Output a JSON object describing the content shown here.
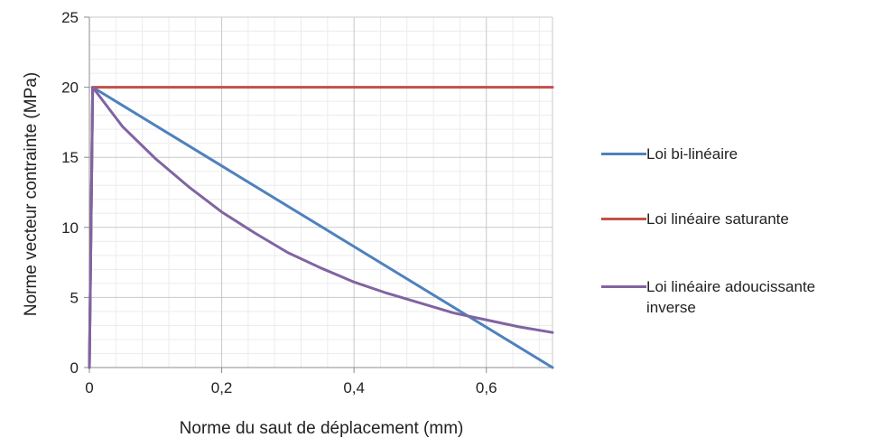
{
  "chart_data": {
    "type": "line",
    "xlabel": "Norme du saut de déplacement (mm)",
    "ylabel": "Norme vecteur contrainte (MPa)",
    "xlim": [
      0,
      0.7
    ],
    "ylim": [
      0,
      25
    ],
    "x_ticks": [
      0,
      0.2,
      0.4,
      0.6
    ],
    "x_tick_labels": [
      "0",
      "0,2",
      "0,4",
      "0,6"
    ],
    "y_ticks": [
      0,
      5,
      10,
      15,
      20,
      25
    ],
    "y_tick_labels": [
      "0",
      "5",
      "10",
      "15",
      "20",
      "25"
    ],
    "grid": true,
    "legend_position": "right",
    "series": [
      {
        "name": "Loi bi-linéaire",
        "color": "#4f81bd",
        "x": [
          0,
          0.005,
          0.7
        ],
        "y": [
          0,
          20,
          0
        ]
      },
      {
        "name": "Loi linéaire saturante",
        "color": "#c0504d",
        "x": [
          0,
          0.005,
          0.7
        ],
        "y": [
          0,
          20,
          20
        ]
      },
      {
        "name": "Loi linéaire adoucissante inverse",
        "color": "#8064a2",
        "x": [
          0,
          0.005,
          0.05,
          0.1,
          0.15,
          0.2,
          0.25,
          0.3,
          0.35,
          0.4,
          0.45,
          0.5,
          0.55,
          0.6,
          0.65,
          0.7
        ],
        "y": [
          0,
          20,
          17.2,
          14.9,
          12.9,
          11.1,
          9.6,
          8.2,
          7.1,
          6.1,
          5.3,
          4.6,
          3.9,
          3.4,
          2.9,
          2.5
        ]
      }
    ]
  }
}
